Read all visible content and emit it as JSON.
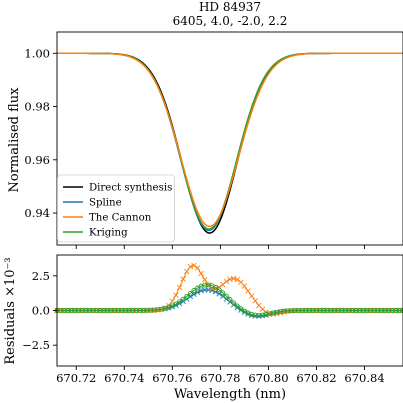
{
  "chart_data": [
    {
      "type": "line",
      "title": "HD 84937",
      "subtitle": "6405, 4.0, -2.0, 2.2",
      "xlabel": "",
      "ylabel": "Normalised flux",
      "xlim": [
        670.712,
        670.856
      ],
      "ylim": [
        0.928,
        1.008
      ],
      "yticks": [
        0.94,
        0.96,
        0.98,
        1.0
      ],
      "ytick_labels": [
        "0.94",
        "0.96",
        "0.98",
        "1.00"
      ],
      "grid": false,
      "legend_position": "lower-left",
      "series": [
        {
          "name": "Direct synthesis",
          "color": "#000000",
          "line_center": 670.7755,
          "depth": 0.0675,
          "sigma": 0.0115
        },
        {
          "name": "Spline",
          "color": "#1f77b4",
          "line_center": 670.7752,
          "depth": 0.0665,
          "sigma": 0.0116
        },
        {
          "name": "The Cannon",
          "color": "#ff7f0e",
          "line_center": 670.7755,
          "depth": 0.065,
          "sigma": 0.0119
        },
        {
          "name": "Kriging",
          "color": "#2ca02c",
          "line_center": 670.7752,
          "depth": 0.066,
          "sigma": 0.0116
        }
      ]
    },
    {
      "type": "line",
      "title": "",
      "xlabel": "Wavelength (nm)",
      "ylabel": "Residuals ×10⁻³",
      "xlim": [
        670.712,
        670.856
      ],
      "ylim": [
        -4.0,
        4.0
      ],
      "xticks": [
        670.72,
        670.74,
        670.76,
        670.78,
        670.8,
        670.82,
        670.84
      ],
      "xtick_labels": [
        "670.72",
        "670.74",
        "670.76",
        "670.78",
        "670.80",
        "670.82",
        "670.84"
      ],
      "yticks": [
        -2.5,
        0.0,
        2.5
      ],
      "ytick_labels": [
        "−2.5",
        "0.0",
        "2.5"
      ],
      "grid": false,
      "x_start": 670.712,
      "x_step": 0.0015,
      "x_count": 97,
      "series": [
        {
          "name": "Spline",
          "color": "#1f77b4",
          "marker": "x",
          "components": [
            [
              1.5,
              670.7745,
              0.0078
            ],
            [
              -0.45,
              670.7945,
              0.006
            ]
          ]
        },
        {
          "name": "The Cannon",
          "color": "#ff7f0e",
          "marker": "x",
          "components": [
            [
              3.2,
              670.7685,
              0.0048
            ],
            [
              2.3,
              670.7855,
              0.0062
            ],
            [
              -0.35,
              670.8005,
              0.004
            ]
          ]
        },
        {
          "name": "Kriging",
          "color": "#2ca02c",
          "marker": "o",
          "components": [
            [
              1.85,
              670.7745,
              0.0078
            ],
            [
              -0.4,
              670.7945,
              0.006
            ]
          ]
        }
      ]
    }
  ]
}
